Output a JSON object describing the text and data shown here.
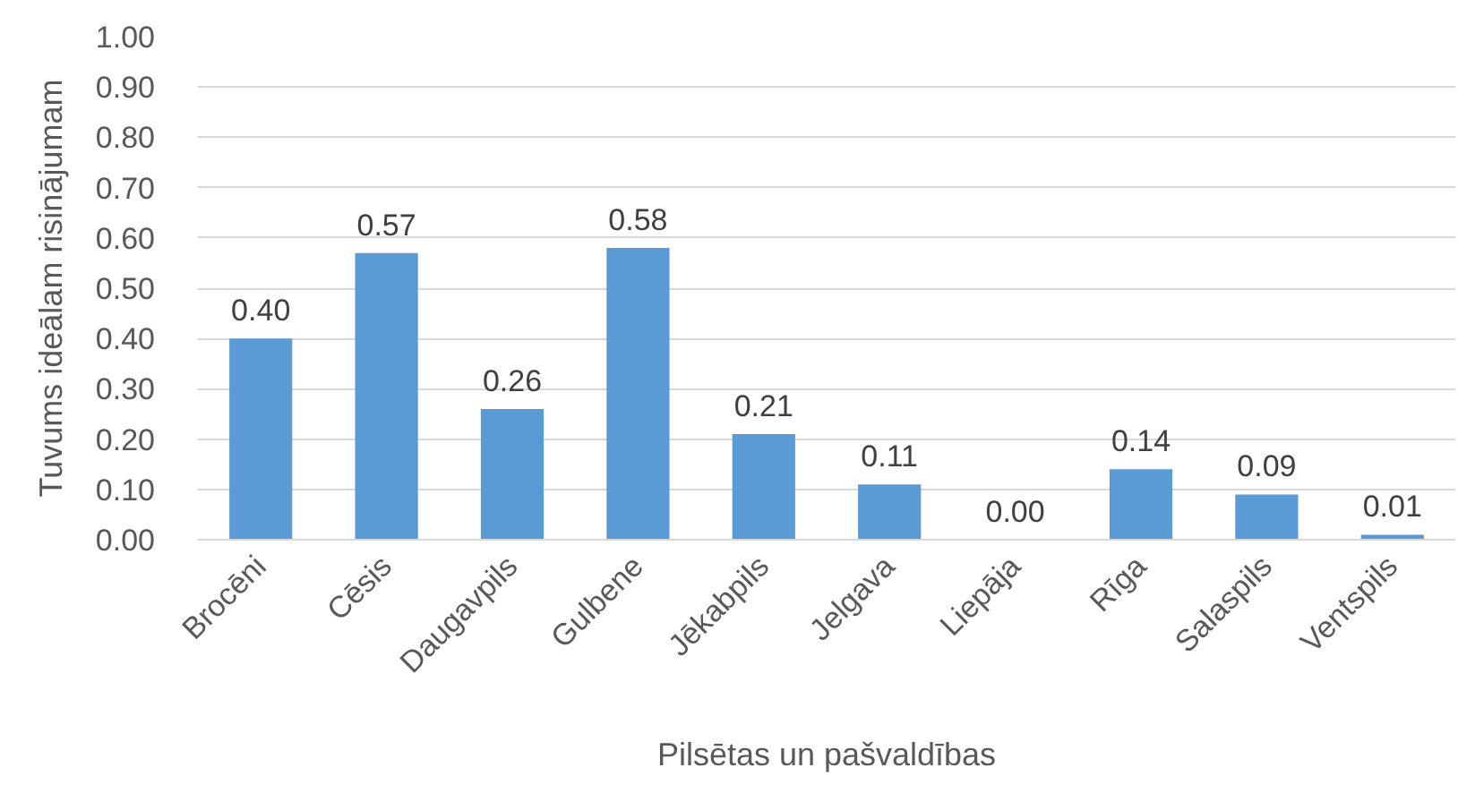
{
  "chart_data": {
    "type": "bar",
    "xlabel": "Pilsētas un pašvaldības",
    "ylabel": "Tuvums ideālam risinājumam",
    "categories": [
      "Brocēni",
      "Cēsis",
      "Daugavpils",
      "Gulbene",
      "Jēkabpils",
      "Jelgava",
      "Liepāja",
      "Rīga",
      "Salaspils",
      "Ventspils"
    ],
    "values": [
      0.4,
      0.57,
      0.26,
      0.58,
      0.21,
      0.11,
      0.0,
      0.14,
      0.09,
      0.01
    ],
    "value_labels": [
      "0.40",
      "0.57",
      "0.26",
      "0.58",
      "0.21",
      "0.11",
      "0.00",
      "0.14",
      "0.09",
      "0.01"
    ],
    "color": "#5b9bd5",
    "ylim": [
      0,
      1
    ],
    "yticks": [
      {
        "value": 0,
        "label": "0.00"
      },
      {
        "value": 0.1,
        "label": "0.10"
      },
      {
        "value": 0.2,
        "label": "0.20"
      },
      {
        "value": 0.3,
        "label": "0.30"
      },
      {
        "value": 0.4,
        "label": "0.40"
      },
      {
        "value": 0.5,
        "label": "0.50"
      },
      {
        "value": 0.6,
        "label": "0.60"
      },
      {
        "value": 0.7,
        "label": "0.70"
      },
      {
        "value": 0.8,
        "label": "0.80"
      },
      {
        "value": 0.9,
        "label": "0.90"
      },
      {
        "value": 1,
        "label": "1.00"
      }
    ],
    "grid": "y"
  }
}
